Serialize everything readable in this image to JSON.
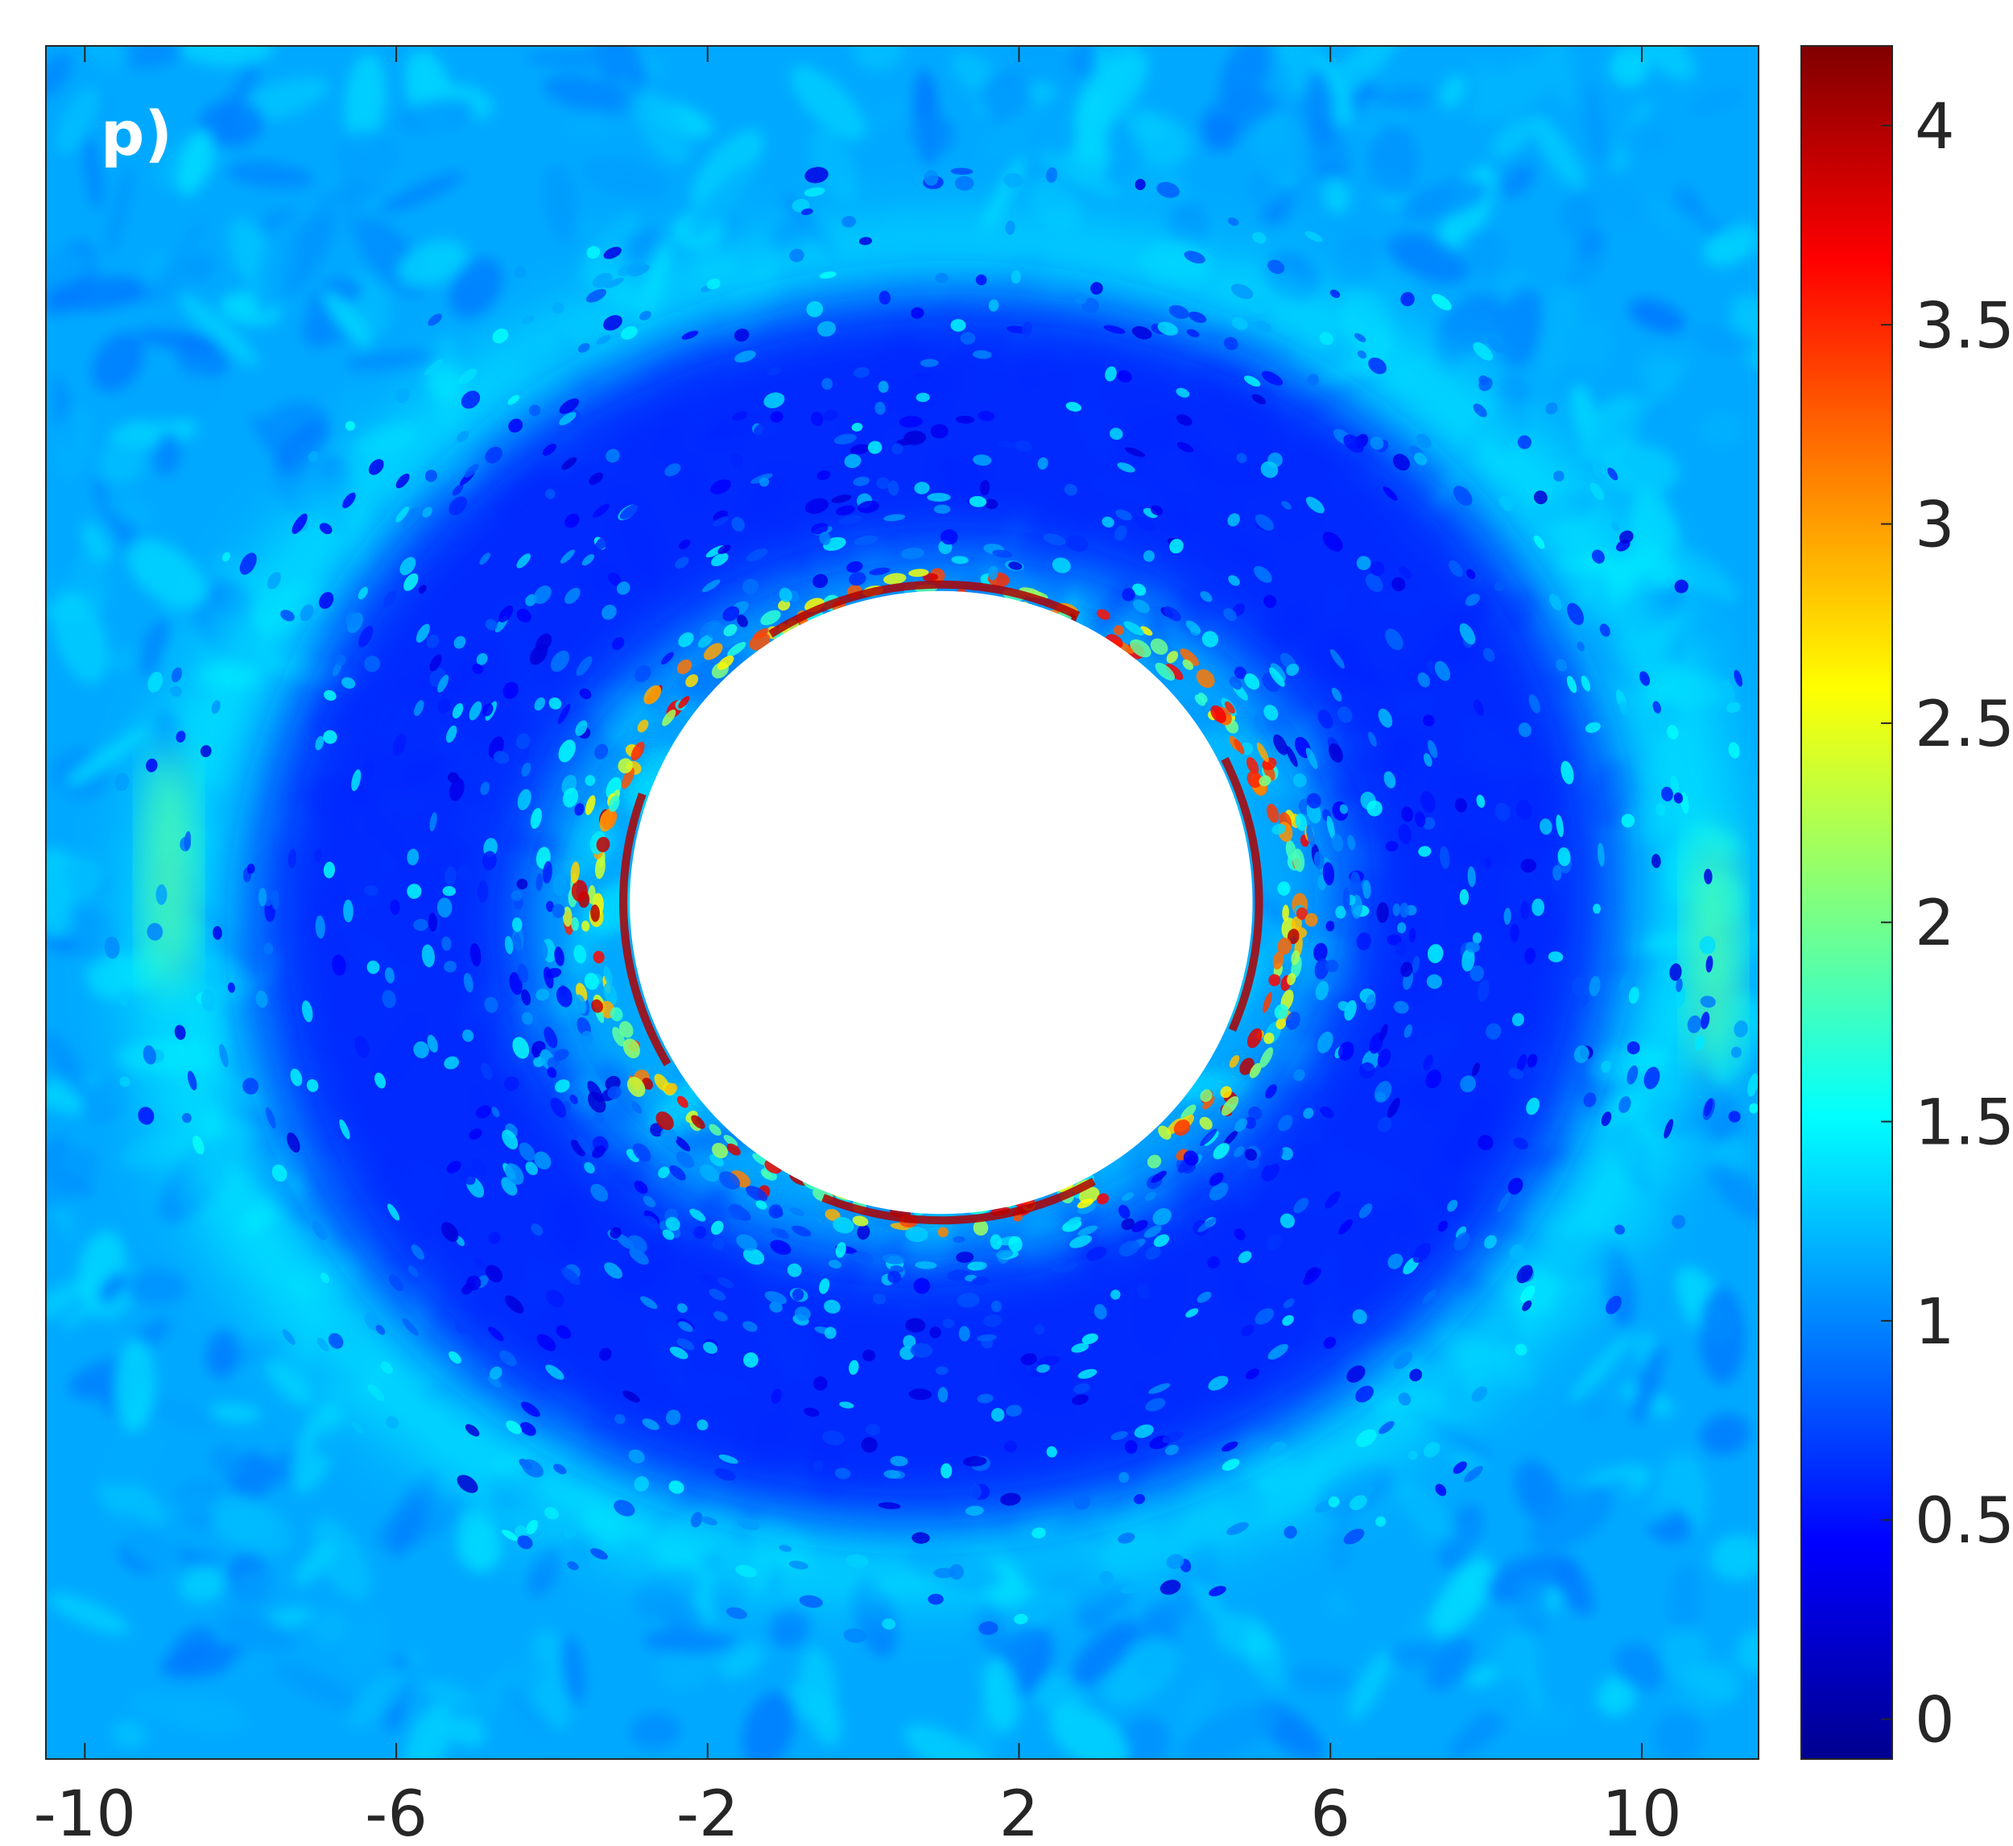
{
  "chart_data": {
    "type": "heatmap",
    "panel_label": "p)",
    "title": "",
    "xlabel": "",
    "ylabel": "",
    "x_ticks": [
      "-10",
      "-6",
      "-2",
      "2",
      "6",
      "10"
    ],
    "x_tick_values": [
      -10,
      -6,
      -2,
      2,
      6,
      10
    ],
    "xlim": [
      -10.5,
      11.5
    ],
    "ylim": [
      -11,
      11
    ],
    "hole": {
      "center": [
        1,
        0
      ],
      "radius": 4.0,
      "color": "#ffffff"
    },
    "colormap": "jet",
    "clim": [
      -0.1,
      4.2
    ],
    "colorbar_ticks": [
      "0",
      "0.5",
      "1",
      "1.5",
      "2",
      "2.5",
      "3",
      "3.5",
      "4"
    ],
    "colorbar_tick_values": [
      0,
      0.5,
      1,
      1.5,
      2,
      2.5,
      3,
      3.5,
      4
    ],
    "field_description_values": {
      "far_field_level": 1.15,
      "inner_ring_level": 0.55,
      "outer_ring_level": 1.45,
      "crescent_peak_level": 1.9,
      "edge_peak_level": 4.0
    },
    "grid": false,
    "colorbar_location": "right"
  }
}
